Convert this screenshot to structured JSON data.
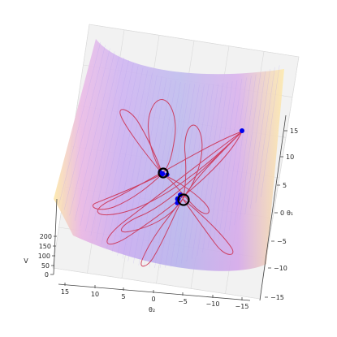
{
  "chart_data": {
    "type": "surface3d",
    "axes": {
      "theta1": {
        "label": "θ₁",
        "ticks": [
          "15",
          "10",
          "5",
          "0",
          "−5",
          "−10",
          "−15"
        ]
      },
      "theta2": {
        "label": "θ₂",
        "ticks": [
          "15",
          "10",
          "5",
          "0",
          "−5",
          "−10",
          "−15"
        ]
      },
      "V": {
        "label": "V",
        "ticks": [
          "0",
          "50",
          "100",
          "150",
          "200"
        ]
      }
    },
    "markers": {
      "start_point": {
        "theta1": 13,
        "theta2": -14
      },
      "minimum_1": {
        "theta1": 4.2,
        "theta2": 0.4
      },
      "minimum_2": {
        "theta1": -0.6,
        "theta2": -3.1
      }
    },
    "colors": {
      "surface_low": "#b7a7f0",
      "surface_mid": "#e3a8e6",
      "surface_high": "#fde7a2",
      "trajectory": "#cc2a4a",
      "marker_fill": "#0000ee",
      "ring": "#000000",
      "pane": "#f2f2f2",
      "grid": "#d9d9d9"
    }
  }
}
